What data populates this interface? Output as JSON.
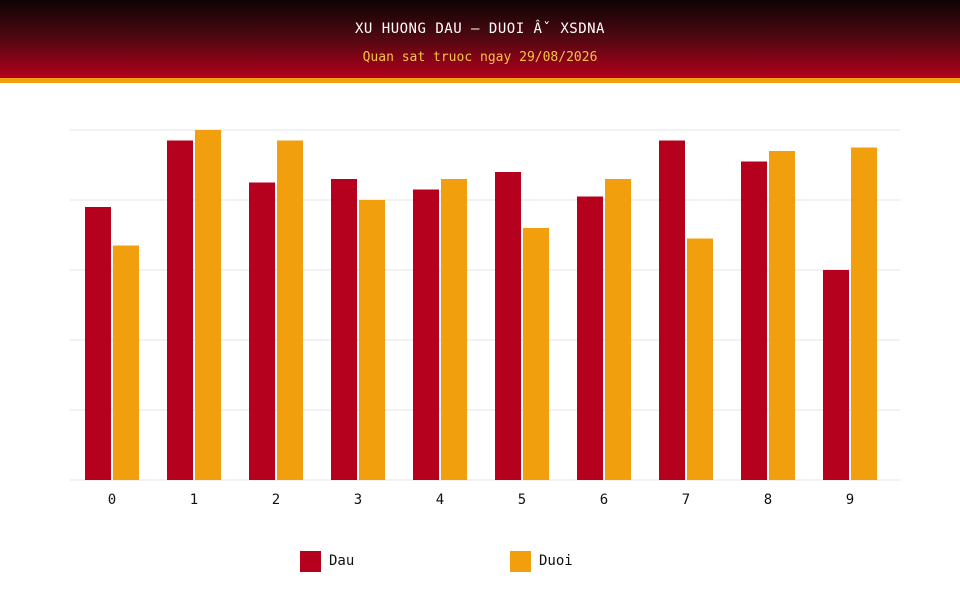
{
  "header": {
    "title": "XU HUONG DAU – DUOI Âˇ XSDNA",
    "subtitle": "Quan sat truoc ngay 29/08/2026"
  },
  "colors": {
    "dau": "#b5001e",
    "duoi": "#f29f0e",
    "grid": "#e6e6e6"
  },
  "chart_data": {
    "type": "bar",
    "categories": [
      "0",
      "1",
      "2",
      "3",
      "4",
      "5",
      "6",
      "7",
      "8",
      "9"
    ],
    "series": [
      {
        "name": "Dau",
        "values": [
          7.8,
          9.7,
          8.5,
          8.6,
          8.3,
          8.8,
          8.1,
          9.7,
          9.1,
          6.0
        ]
      },
      {
        "name": "Duoi",
        "values": [
          6.7,
          10.0,
          9.7,
          8.0,
          8.6,
          7.2,
          8.6,
          6.9,
          9.4,
          9.5
        ]
      }
    ],
    "ylim": [
      0,
      10
    ],
    "grid": true,
    "legend": "bottom"
  }
}
